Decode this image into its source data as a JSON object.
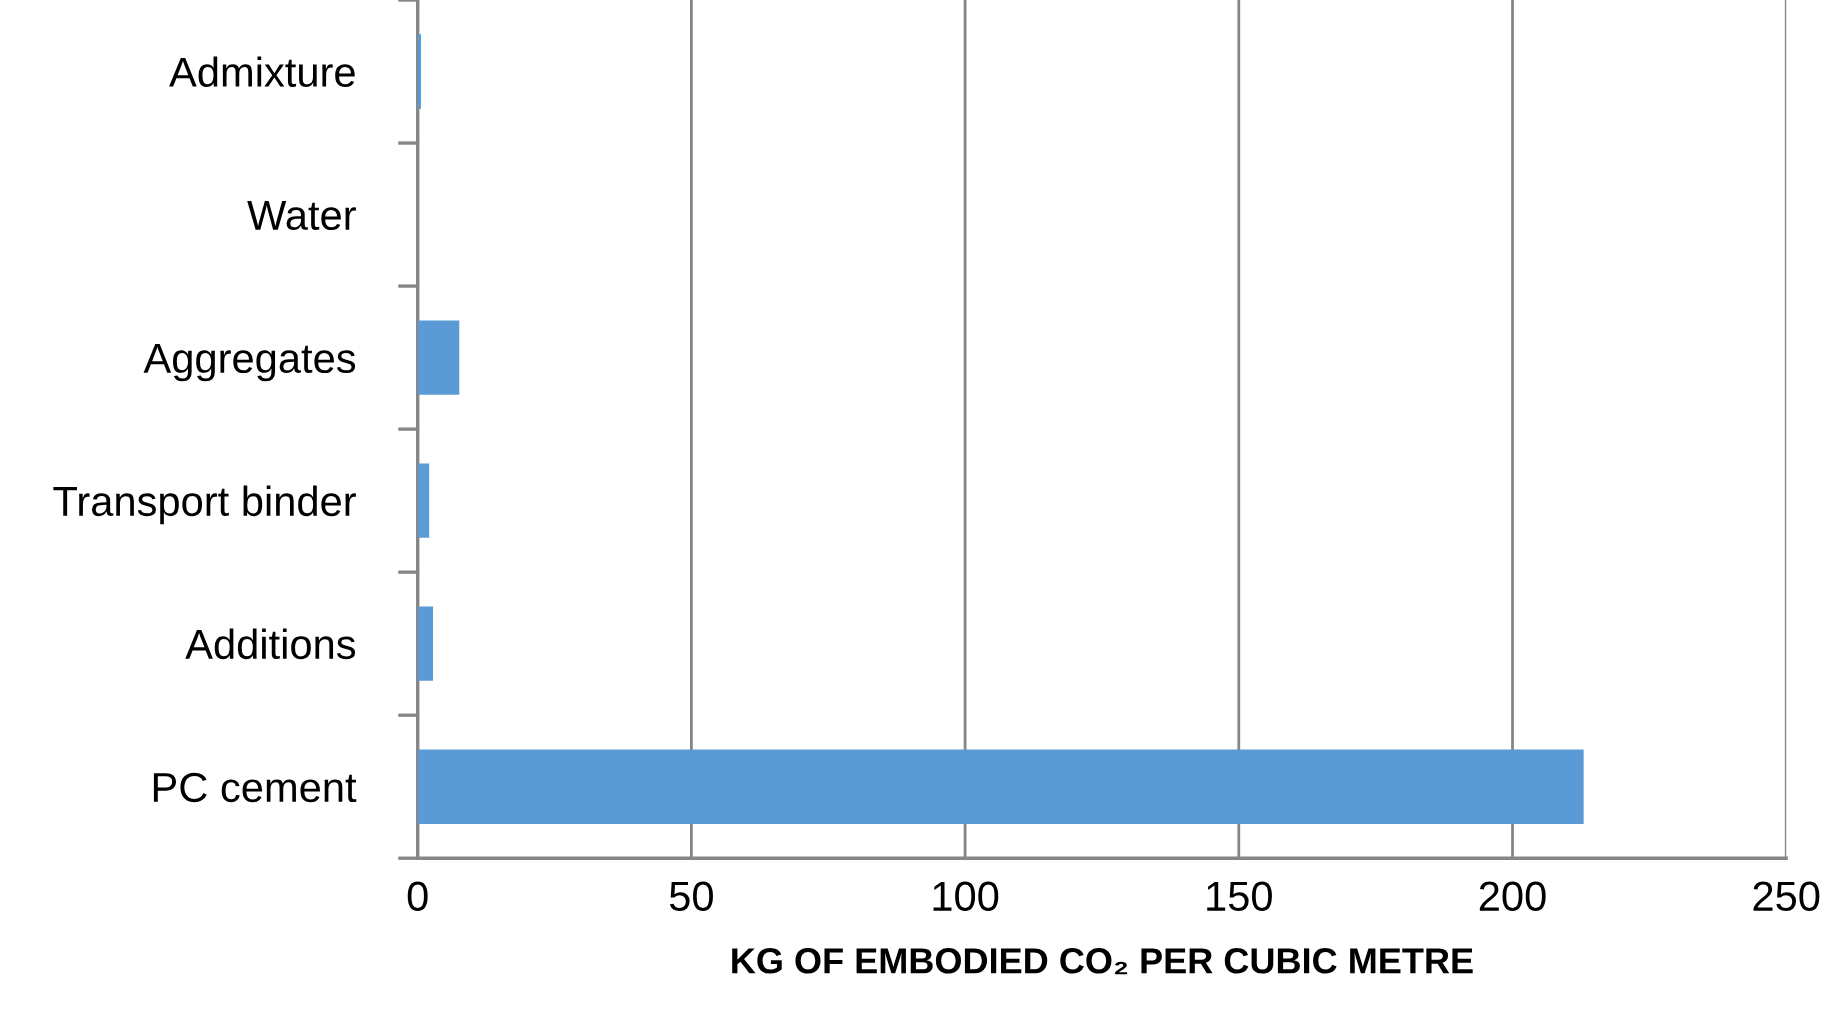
{
  "chart_data": {
    "type": "bar",
    "orientation": "horizontal",
    "categories": [
      "Admixture",
      "Water",
      "Aggregates",
      "Transport binder",
      "Additions",
      "PC cement"
    ],
    "values": [
      0.6,
      0,
      7.6,
      2.1,
      2.8,
      213
    ],
    "color": "#5b9bd5",
    "xlim": [
      0,
      250
    ],
    "xticks": [
      0,
      50,
      100,
      150,
      200,
      250
    ],
    "grid": "x",
    "legend": false,
    "xlabel": "KG OF EMBODIED CO₂ PER CUBIC METRE"
  }
}
